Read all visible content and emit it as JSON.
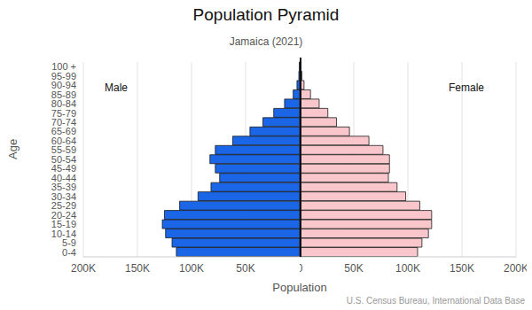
{
  "chart_data": {
    "type": "bar",
    "orientation": "horizontal",
    "title": "Population Pyramid",
    "subtitle": "Jamaica (2021)",
    "x_label": "Population",
    "y_label": "Age",
    "source": "U.S. Census Bureau, International Data Base",
    "categories": [
      "100 +",
      "95-99",
      "90-94",
      "85-89",
      "80-84",
      "75-79",
      "70-74",
      "65-69",
      "60-64",
      "55-59",
      "50-54",
      "45-49",
      "40-44",
      "35-39",
      "30-34",
      "25-29",
      "20-24",
      "15-19",
      "10-14",
      "5-9",
      "0-4"
    ],
    "series": [
      {
        "name": "Male",
        "color": "#1a66e6",
        "values": [
          300,
          800,
          2500,
          6000,
          14000,
          24000,
          34000,
          46000,
          62000,
          78000,
          83000,
          78000,
          74000,
          82000,
          94000,
          111000,
          125000,
          127000,
          124000,
          118000,
          114000
        ]
      },
      {
        "name": "Female",
        "color": "#f9c6cb",
        "values": [
          800,
          2000,
          4000,
          10000,
          18000,
          26000,
          34000,
          46000,
          64000,
          77000,
          83000,
          83000,
          82000,
          90000,
          98000,
          111000,
          122000,
          122000,
          119000,
          113000,
          109000
        ]
      }
    ],
    "xlim": [
      0,
      200000
    ],
    "xticks": [
      0,
      {
        "value": 50000,
        "label": "50K"
      },
      {
        "value": 100000,
        "label": "100K"
      },
      {
        "value": 150000,
        "label": "150K"
      },
      {
        "value": 200000,
        "label": "200K"
      }
    ],
    "grid": true
  }
}
